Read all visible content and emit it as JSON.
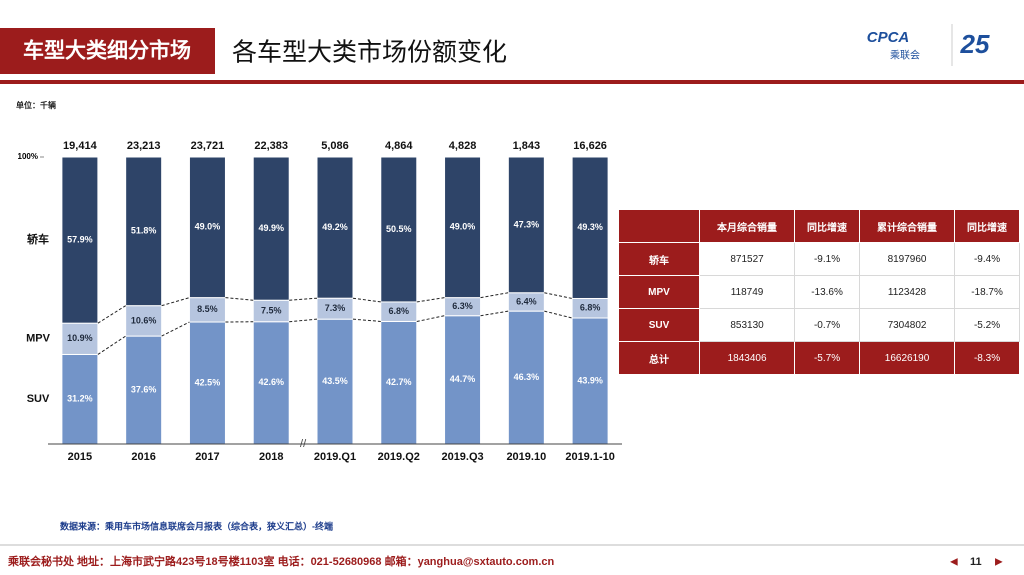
{
  "header": {
    "title": "车型大类细分市场",
    "subtitle": "各车型大类市场份额变化",
    "logo": "CPCA",
    "logo_sub": "乘联会",
    "anniversary": "25"
  },
  "unit": "单位：千辆",
  "chart_data": {
    "type": "stacked_bar",
    "categories": [
      "2015",
      "2016",
      "2017",
      "2018",
      "2019.Q1",
      "2019.Q2",
      "2019.Q3",
      "2019.10",
      "2019.1-10"
    ],
    "series": [
      {
        "name": "SUV",
        "color": "#7394c8",
        "label_color": "#ffffff",
        "values": [
          31.2,
          37.6,
          42.5,
          42.6,
          43.5,
          42.7,
          44.7,
          46.3,
          43.9
        ],
        "value_labels": [
          "31.2%",
          "37.6%",
          "42.5%",
          "42.6%",
          "43.5%",
          "42.7%",
          "44.7%",
          "46.3%",
          "43.9%"
        ]
      },
      {
        "name": "MPV",
        "color": "#b6c5df",
        "label_color": "#1f2a3c",
        "values": [
          10.9,
          10.6,
          8.5,
          7.5,
          7.3,
          6.8,
          6.3,
          6.4,
          6.8
        ],
        "value_labels": [
          "10.9%",
          "10.6%",
          "8.5%",
          "7.5%",
          "7.3%",
          "6.8%",
          "6.3%",
          "6.4%",
          "6.8%"
        ]
      },
      {
        "name": "轿车",
        "color": "#2e4468",
        "label_color": "#ffffff",
        "values": [
          57.9,
          51.8,
          49.0,
          49.9,
          49.2,
          50.5,
          49.0,
          47.3,
          49.3
        ],
        "value_labels": [
          "57.9%",
          "51.8%",
          "49.0%",
          "49.9%",
          "49.2%",
          "50.5%",
          "49.0%",
          "47.3%",
          "49.3%"
        ]
      }
    ],
    "totals": {
      "values": [
        19414,
        23213,
        23721,
        22383,
        5086,
        4864,
        4828,
        1843,
        16626
      ],
      "value_labels": [
        "19,414",
        "23,213",
        "23,721",
        "22,383",
        "5,086",
        "4,864",
        "4,828",
        "1,843",
        "16,626"
      ]
    },
    "ylim": [
      0,
      100
    ],
    "yticks": [
      {
        "value": 100,
        "label": "100%"
      }
    ]
  },
  "table": {
    "columns": [
      "本月综合销量",
      "同比增速",
      "累计综合销量",
      "同比增速"
    ],
    "rows": [
      {
        "label": "轿车",
        "cells": [
          "871527",
          "-9.1%",
          "8197960",
          "-9.4%"
        ]
      },
      {
        "label": "MPV",
        "cells": [
          "118749",
          "-13.6%",
          "1123428",
          "-18.7%"
        ]
      },
      {
        "label": "SUV",
        "cells": [
          "853130",
          "-0.7%",
          "7304802",
          "-5.2%"
        ]
      },
      {
        "label": "总计",
        "cells": [
          "1843406",
          "-5.7%",
          "16626190",
          "-8.3%"
        ]
      }
    ]
  },
  "source": "数据来源：乘用车市场信息联席会月报表（综合表，狭义汇总）-终端",
  "footer": "乘联会秘书处  地址：上海市武宁路423号18号楼1103室  电话：021-52680968   邮箱：yanghua@sxtauto.com.cn",
  "page": "11"
}
